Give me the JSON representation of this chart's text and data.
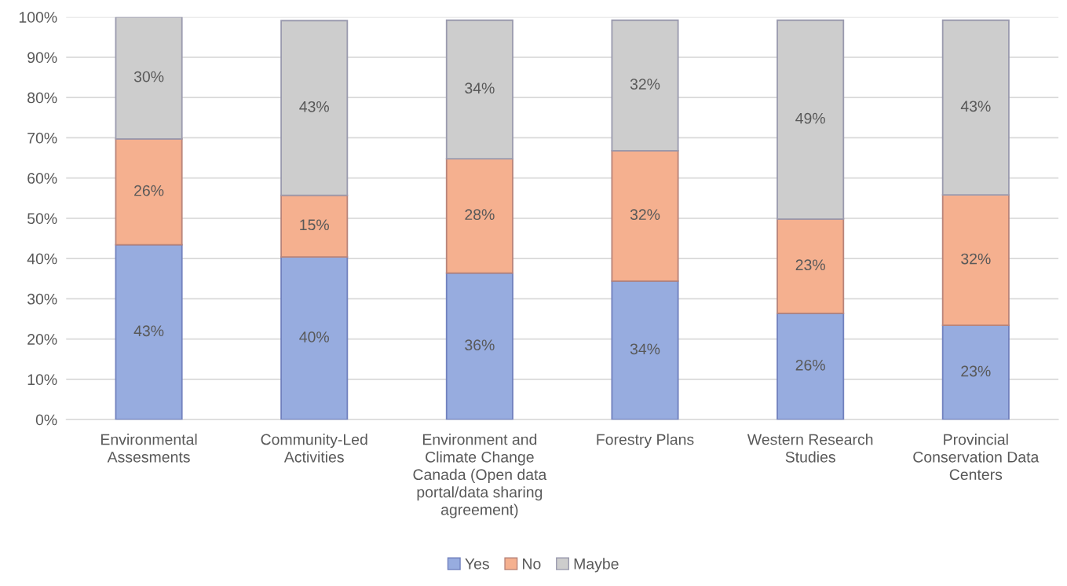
{
  "chart_data": {
    "type": "bar",
    "stacked": true,
    "categories": [
      "Environmental Assesments",
      "Community-Led Activities",
      "Environment and Climate Change Canada (Open data portal/data sharing agreement)",
      "Forestry Plans",
      "Western Research Studies",
      "Provincial Conservation Data Centers"
    ],
    "series": [
      {
        "name": "Yes",
        "color": "#97acdf",
        "values": [
          43.4,
          40.4,
          36.4,
          34.4,
          26.4,
          23.4
        ],
        "value_labels": [
          "43%",
          "40%",
          "36%",
          "34%",
          "26%",
          "23%"
        ]
      },
      {
        "name": "No",
        "color": "#f5b08f",
        "values": [
          26.3,
          15.3,
          28.4,
          32.4,
          23.4,
          32.4
        ],
        "value_labels": [
          "26%",
          "15%",
          "28%",
          "32%",
          "23%",
          "32%"
        ]
      },
      {
        "name": "Maybe",
        "color": "#cdcdcd",
        "values": [
          30.3,
          43.4,
          34.4,
          32.4,
          49.4,
          43.4
        ],
        "value_labels": [
          "30%",
          "43%",
          "34%",
          "32%",
          "49%",
          "43%"
        ]
      }
    ],
    "ylim": [
      0,
      100
    ],
    "yticks": [
      {
        "value": 0,
        "label": "0%"
      },
      {
        "value": 10,
        "label": "10%"
      },
      {
        "value": 20,
        "label": "20%"
      },
      {
        "value": 30,
        "label": "30%"
      },
      {
        "value": 40,
        "label": "40%"
      },
      {
        "value": 50,
        "label": "50%"
      },
      {
        "value": 60,
        "label": "60%"
      },
      {
        "value": 70,
        "label": "70%"
      },
      {
        "value": 80,
        "label": "80%"
      },
      {
        "value": 90,
        "label": "90%"
      },
      {
        "value": 100,
        "label": "100%"
      }
    ],
    "grid": "y",
    "legend": "bottom"
  }
}
